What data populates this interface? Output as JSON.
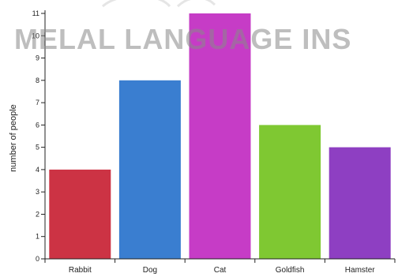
{
  "watermark": "MELAL LANGUAGE INS",
  "colors": {
    "axis": "#222222",
    "bars": [
      "#cc3344",
      "#3a7ed0",
      "#c63cc6",
      "#7fc832",
      "#8e3fc2"
    ]
  },
  "chart_data": {
    "type": "bar",
    "categories": [
      "Rabbit",
      "Dog",
      "Cat",
      "Goldfish",
      "Hamster"
    ],
    "values": [
      4,
      8,
      11,
      6,
      5
    ],
    "ylabel": "number of people",
    "xlabel": "",
    "title": "",
    "ylim": [
      0,
      11
    ],
    "yticks": [
      0,
      1,
      2,
      3,
      4,
      5,
      6,
      7,
      8,
      9,
      10,
      11
    ],
    "grid": false,
    "legend": "none"
  }
}
